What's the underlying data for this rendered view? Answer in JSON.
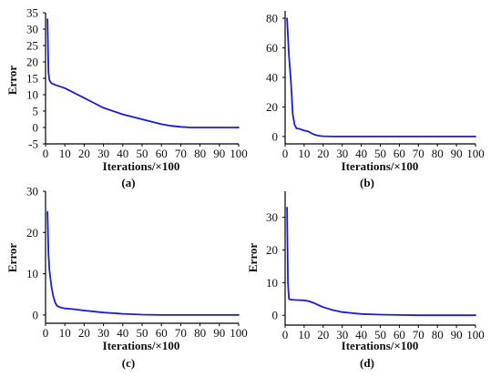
{
  "colors": {
    "line": "#1a1adf",
    "axis": "#000000",
    "background": "#ffffff"
  },
  "chart_data": [
    {
      "panel_label": "(a)",
      "type": "line",
      "xlabel": "Iterations/×100",
      "ylabel": "Error",
      "xlim": [
        0,
        100
      ],
      "ylim": [
        -5,
        35
      ],
      "xticks": [
        0,
        10,
        20,
        30,
        40,
        50,
        60,
        70,
        80,
        90,
        100
      ],
      "yticks": [
        -5,
        0,
        5,
        10,
        15,
        20,
        25,
        30,
        35
      ],
      "series": [
        {
          "x": [
            1,
            1.5,
            2,
            3,
            5,
            10,
            15,
            20,
            25,
            30,
            40,
            50,
            60,
            65,
            70,
            75,
            80,
            90,
            100
          ],
          "y": [
            33,
            17,
            14.5,
            13.5,
            13,
            12,
            10.5,
            9,
            7.5,
            6,
            4,
            2.5,
            1,
            0.5,
            0.2,
            0,
            0,
            0,
            0
          ]
        }
      ]
    },
    {
      "panel_label": "(b)",
      "type": "line",
      "xlabel": "Iterations/×100",
      "ylabel": "",
      "xlim": [
        0,
        100
      ],
      "ylim": [
        -5,
        85
      ],
      "xticks": [
        0,
        10,
        20,
        30,
        40,
        50,
        60,
        70,
        80,
        90,
        100
      ],
      "yticks": [
        0,
        20,
        40,
        60,
        80
      ],
      "series": [
        {
          "x": [
            1,
            2,
            3,
            4,
            5,
            6,
            8,
            10,
            12,
            14,
            16,
            18,
            20,
            25,
            30,
            50,
            70,
            100
          ],
          "y": [
            80,
            55,
            38,
            15,
            8,
            5.5,
            5,
            4,
            3.5,
            2,
            1,
            0.5,
            0.2,
            0,
            0,
            0,
            0,
            0
          ]
        }
      ]
    },
    {
      "panel_label": "(c)",
      "type": "line",
      "xlabel": "Iterations/×100",
      "ylabel": "Error",
      "xlim": [
        0,
        100
      ],
      "ylim": [
        -2,
        30
      ],
      "xticks": [
        0,
        10,
        20,
        30,
        40,
        50,
        60,
        70,
        80,
        90,
        100
      ],
      "yticks": [
        0,
        10,
        20,
        30
      ],
      "series": [
        {
          "x": [
            1,
            1.5,
            2,
            3,
            4,
            5,
            6,
            8,
            10,
            15,
            20,
            30,
            40,
            50,
            60,
            70,
            100
          ],
          "y": [
            25,
            15,
            11,
            7,
            4.5,
            3,
            2.2,
            1.8,
            1.6,
            1.4,
            1.1,
            0.6,
            0.3,
            0.1,
            0,
            0,
            0
          ]
        }
      ]
    },
    {
      "panel_label": "(d)",
      "type": "line",
      "xlabel": "Iterations/×100",
      "ylabel": "Error",
      "xlim": [
        0,
        100
      ],
      "ylim": [
        -3,
        38
      ],
      "xticks": [
        0,
        10,
        20,
        30,
        40,
        50,
        60,
        70,
        80,
        90,
        100
      ],
      "yticks": [
        0,
        10,
        20,
        30
      ],
      "series": [
        {
          "x": [
            1,
            1.5,
            2,
            3,
            5,
            10,
            12,
            15,
            18,
            20,
            25,
            30,
            40,
            50,
            60,
            70,
            80,
            100
          ],
          "y": [
            33,
            10,
            5,
            4.8,
            4.7,
            4.6,
            4.4,
            3.8,
            3,
            2.5,
            1.6,
            1,
            0.4,
            0.2,
            0.1,
            0,
            0,
            0
          ]
        }
      ]
    }
  ]
}
